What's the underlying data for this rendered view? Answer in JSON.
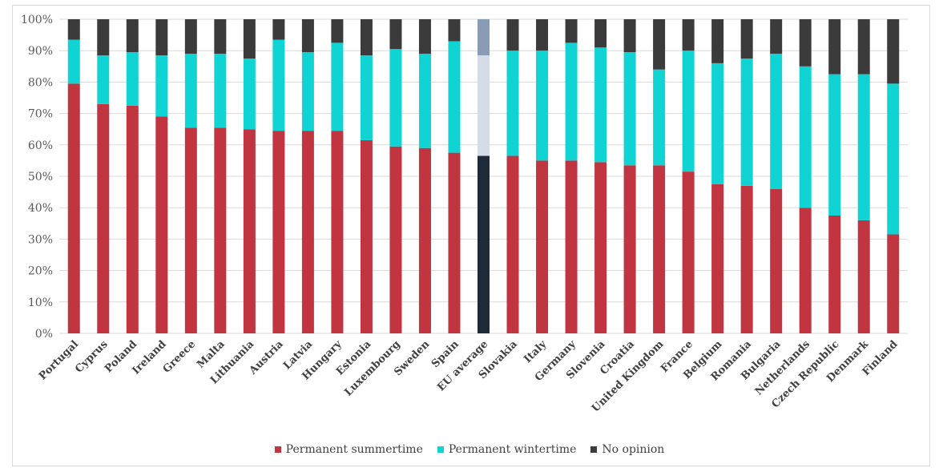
{
  "chart_data": {
    "type": "bar",
    "stacked": true,
    "title": "",
    "xlabel": "",
    "ylabel": "",
    "ylim": [
      0,
      100
    ],
    "yticks": [
      "0%",
      "10%",
      "20%",
      "30%",
      "40%",
      "50%",
      "60%",
      "70%",
      "80%",
      "90%",
      "100%"
    ],
    "grid": true,
    "legend_position": "bottom",
    "categories": [
      "Portugal",
      "Cyprus",
      "Poland",
      "Ireland",
      "Greece",
      "Malta",
      "Lithuania",
      "Austria",
      "Latvia",
      "Hungary",
      "Estonia",
      "Luxembourg",
      "Sweden",
      "Spain",
      "EU average",
      "Slovakia",
      "Italy",
      "Germany",
      "Slovenia",
      "Croatia",
      "United Kingdom",
      "France",
      "Belgium",
      "Romania",
      "Bulgaria",
      "Netherlands",
      "Czech Republic",
      "Denmark",
      "Finland"
    ],
    "highlight_category": "EU average",
    "series": [
      {
        "name": "Permanent summertime",
        "color": "#c0353f",
        "highlight_color": "#1f2a38",
        "values": [
          79.5,
          73,
          72.5,
          69,
          65.5,
          65.5,
          65,
          64.5,
          64.5,
          64.5,
          61.5,
          59.5,
          59,
          57.5,
          56.5,
          56.5,
          55,
          55,
          54.5,
          53.5,
          53.5,
          51.5,
          47.5,
          47,
          46,
          40,
          37.5,
          36,
          31.5
        ]
      },
      {
        "name": "Permanent wintertime",
        "color": "#10d4d4",
        "highlight_color": "#d4dce7",
        "values": [
          14,
          15.5,
          17,
          19.5,
          23.5,
          23.5,
          22.5,
          29,
          25,
          28,
          27,
          31,
          30,
          35.5,
          32,
          33.5,
          35,
          37.5,
          36.5,
          36,
          30.5,
          38.5,
          38.5,
          40.5,
          43,
          45,
          45,
          46.5,
          48
        ]
      },
      {
        "name": "No opinion",
        "color": "#3b3b3b",
        "highlight_color": "#8a9bb5",
        "values": [
          6.5,
          11.5,
          10.5,
          11.5,
          11,
          11,
          12.5,
          6.5,
          10.5,
          7.5,
          11.5,
          9.5,
          11,
          7,
          11.5,
          10,
          10,
          7.5,
          9,
          10.5,
          16,
          10,
          14,
          12.5,
          11,
          15,
          17.5,
          17.5,
          20.5
        ]
      }
    ]
  }
}
